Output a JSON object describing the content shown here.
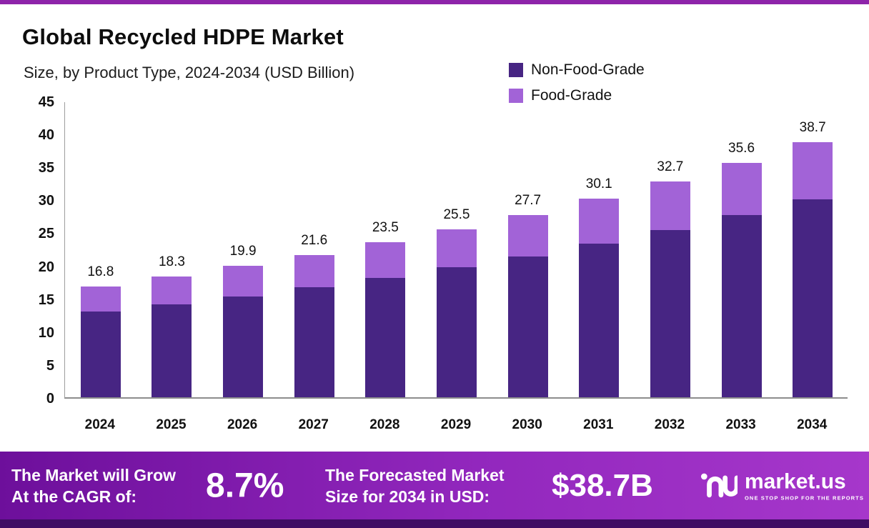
{
  "header": {
    "title": "Global Recycled HDPE Market",
    "subtitle": "Size, by Product Type, 2024-2034 (USD Billion)"
  },
  "legend": [
    {
      "label": "Non-Food-Grade",
      "color": "#472583"
    },
    {
      "label": "Food-Grade",
      "color": "#a263d7"
    }
  ],
  "chart_data": {
    "type": "bar",
    "stacked": true,
    "title": "Global Recycled HDPE Market Size, by Product Type, 2024-2034 (USD Billion)",
    "categories": [
      "2024",
      "2025",
      "2026",
      "2027",
      "2028",
      "2029",
      "2030",
      "2031",
      "2032",
      "2033",
      "2034"
    ],
    "series": [
      {
        "name": "Non-Food-Grade",
        "color": "#472583",
        "values": [
          13.0,
          14.1,
          15.3,
          16.7,
          18.1,
          19.7,
          21.4,
          23.3,
          25.4,
          27.6,
          30.0
        ]
      },
      {
        "name": "Food-Grade",
        "color": "#a263d7",
        "values": [
          3.8,
          4.2,
          4.6,
          4.9,
          5.4,
          5.8,
          6.3,
          6.8,
          7.3,
          8.0,
          8.7
        ]
      }
    ],
    "totals": [
      16.8,
      18.3,
      19.9,
      21.6,
      23.5,
      25.5,
      27.7,
      30.1,
      32.7,
      35.6,
      38.7
    ],
    "xlabel": "",
    "ylabel": "",
    "ylim": [
      0,
      45
    ],
    "yticks": [
      0,
      5,
      10,
      15,
      20,
      25,
      30,
      35,
      40,
      45
    ],
    "grid": false,
    "legend_position": "top-right"
  },
  "banner": {
    "cagr_label_line1": "The Market will Grow",
    "cagr_label_line2": "At the CAGR of:",
    "cagr_value": "8.7%",
    "forecast_label_line1": "The Forecasted Market",
    "forecast_label_line2": "Size for 2034 in USD:",
    "forecast_value": "$38.7B",
    "brand": "market.us",
    "brand_tagline": "ONE STOP SHOP FOR THE REPORTS"
  },
  "colors": {
    "banner_gradient_start": "#6d0f9b",
    "banner_gradient_end": "#a637cb",
    "top_border": "#8e24aa",
    "bottom_strip": "#3f0d63"
  }
}
